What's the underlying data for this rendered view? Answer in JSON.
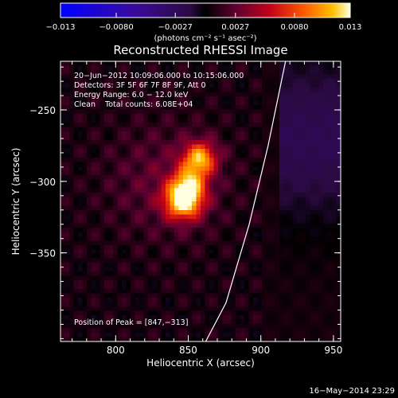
{
  "chart_data": {
    "type": "heatmap",
    "title": "Reconstructed RHESSI Image",
    "xlabel": "Heliocentric X (arcsec)",
    "ylabel": "Heliocentric Y (arcsec)",
    "xlim": [
      762,
      955
    ],
    "ylim": [
      -412,
      -216
    ],
    "x_ticks": [
      800,
      850,
      900,
      950
    ],
    "x_tick_labels": [
      "800",
      "850",
      "900",
      "950"
    ],
    "y_ticks": [
      -250,
      -300,
      -350
    ],
    "y_tick_labels": [
      "−250",
      "−300",
      "−350"
    ],
    "colorbar": {
      "min": -0.013,
      "max": 0.013,
      "ticks": [
        -0.013,
        -0.008,
        -0.0027,
        0.0027,
        0.008,
        0.013
      ],
      "tick_labels": [
        "−0.013",
        "−0.0080",
        "−0.0027",
        "0.0027",
        "0.0080",
        "0.013"
      ],
      "unit_label": "(photons cm⁻² s⁻¹ asec⁻²)"
    },
    "annotations": [
      "20−Jun−2012 10:09:06.000 to 10:15:06.000",
      "Detectors: 3F 5F 6F 7F 8F 9F, Att 0",
      "Energy Range: 6.0 − 12.0 keV",
      "Clean    Total counts: 6.08E+04"
    ],
    "peak_label": "Position of Peak = [847,−313]",
    "sources": [
      {
        "x": 847,
        "y": -313,
        "peak": 0.013,
        "sigma": 9
      },
      {
        "x": 858,
        "y": -284,
        "peak": 0.0095,
        "sigma": 8
      },
      {
        "x": 851,
        "y": -300,
        "peak": 0.006,
        "sigma": 8
      },
      {
        "x": 835,
        "y": -300,
        "peak": 0.0022,
        "sigma": 28
      }
    ],
    "limb_curve": [
      [
        917,
        -216
      ],
      [
        905,
        -275
      ],
      [
        892,
        -330
      ],
      [
        876,
        -385
      ],
      [
        862,
        -412
      ]
    ],
    "grid": false
  },
  "footer": {
    "timestamp": "16−May−2014 23:29"
  }
}
